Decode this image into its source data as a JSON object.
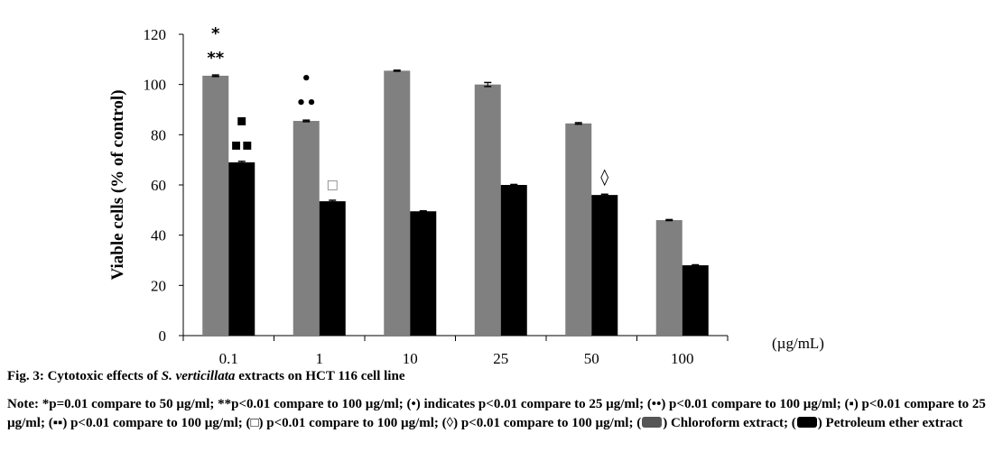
{
  "chart_data": {
    "type": "bar",
    "categories": [
      "0.1",
      "1",
      "10",
      "25",
      "50",
      "100"
    ],
    "series": [
      {
        "name": "Chloroform extract",
        "color": "#808080",
        "values": [
          103.5,
          85.5,
          105.5,
          100,
          84.5,
          46
        ],
        "errors": [
          0.3,
          0.3,
          0.2,
          0.8,
          0.3,
          0.2
        ]
      },
      {
        "name": "Petroleum ether extract",
        "color": "#000000",
        "values": [
          69,
          53.5,
          49.5,
          60,
          56,
          28
        ],
        "errors": [
          0.4,
          0.4,
          0.2,
          0.2,
          0.3,
          0.2
        ]
      }
    ],
    "ylabel": "Viable cells (% of control)",
    "xunit": "(µg/mL)",
    "ylim": [
      0,
      120
    ],
    "yticks": [
      0,
      20,
      40,
      60,
      80,
      100,
      120
    ],
    "grid": false,
    "annotations": [
      {
        "category": "0.1",
        "series": 0,
        "lines": [
          "*",
          "**"
        ]
      },
      {
        "category": "0.1",
        "series": 1,
        "lines": [
          "▪",
          "▪▪"
        ]
      },
      {
        "category": "1",
        "series": 0,
        "lines": [
          "•",
          "••"
        ]
      },
      {
        "category": "1",
        "series": 1,
        "lines": [
          "□"
        ]
      },
      {
        "category": "50",
        "series": 1,
        "lines": [
          "◊"
        ]
      }
    ]
  },
  "caption": {
    "prefix": "Fig. 3: Cytotoxic effects of ",
    "species": "S. verticillata",
    "suffix": " extracts on HCT 116 cell line"
  },
  "note": {
    "text": "Note: *p=0.01 compare to 50 µg/ml; **p<0.01 compare to 100 µg/ml; (•) indicates p<0.01 compare to 25 µg/ml; (••) p<0.01 compare to 100 µg/ml; (▪) p<0.01 compare to 25 µg/ml; (▪▪) p<0.01 compare to 100 µg/ml; (□) p<0.01 compare to 100 µg/ml; (◊) p<0.01 compare to 100 µg/ml; (",
    "legend_chloroform": ") Chloroform extract; (",
    "legend_petroleum": ") Petroleum ether extract"
  }
}
